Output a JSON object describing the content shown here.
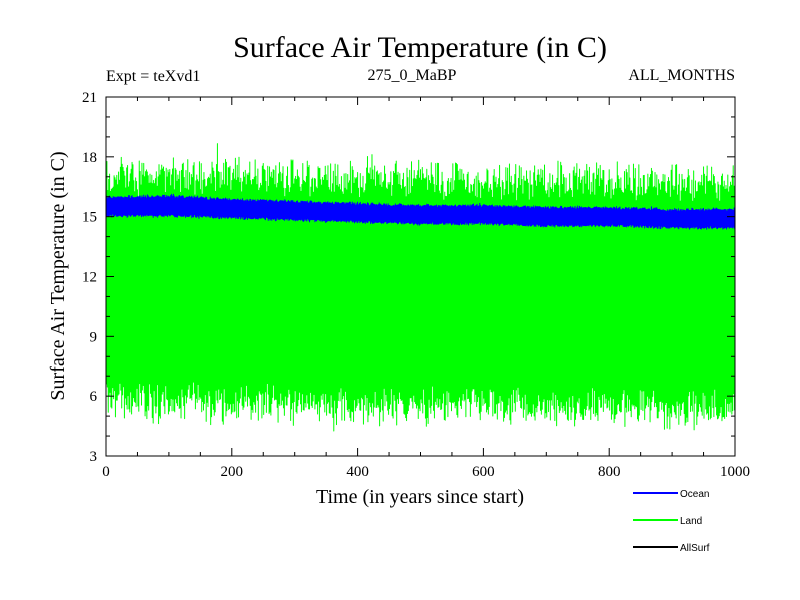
{
  "chart_data": {
    "type": "line",
    "title": "Surface Air Temperature (in C)",
    "subtitle_left": "Expt = teXvd1",
    "subtitle_center": "275_0_MaBP",
    "subtitle_right": "ALL_MONTHS",
    "xlabel": "Time (in years since start)",
    "ylabel": "Surface Air Temperature (in C)",
    "xlim": [
      0,
      1000
    ],
    "ylim": [
      3,
      21
    ],
    "xticks": [
      0,
      200,
      400,
      600,
      800,
      1000
    ],
    "yticks": [
      3,
      6,
      9,
      12,
      15,
      18,
      21
    ],
    "legend_position": "bottom-right",
    "series": [
      {
        "name": "Land",
        "color": "#00ff00",
        "description": "monthly values oscillating between ~5 and ~17.5",
        "x": [
          0,
          100,
          200,
          300,
          400,
          500,
          600,
          700,
          800,
          900,
          1000
        ],
        "upper": [
          17.6,
          17.8,
          17.7,
          17.6,
          17.6,
          17.5,
          17.4,
          17.4,
          17.4,
          17.3,
          17.4
        ],
        "lower": [
          5.2,
          5.0,
          5.1,
          5.0,
          4.8,
          4.9,
          4.9,
          4.8,
          4.8,
          4.7,
          4.8
        ]
      },
      {
        "name": "Ocean",
        "color": "#0000ff",
        "description": "band roughly 14.5-16.2, slight decline",
        "x": [
          0,
          100,
          200,
          300,
          400,
          500,
          600,
          700,
          800,
          900,
          1000
        ],
        "upper": [
          16.0,
          16.1,
          15.9,
          15.8,
          15.7,
          15.6,
          15.6,
          15.5,
          15.5,
          15.4,
          15.4
        ],
        "lower": [
          15.0,
          15.0,
          14.9,
          14.8,
          14.7,
          14.6,
          14.6,
          14.5,
          14.5,
          14.4,
          14.4
        ]
      },
      {
        "name": "AllSurf",
        "color": "#000000",
        "description": "not visible in plot area",
        "x": [],
        "upper": [],
        "lower": []
      }
    ]
  }
}
